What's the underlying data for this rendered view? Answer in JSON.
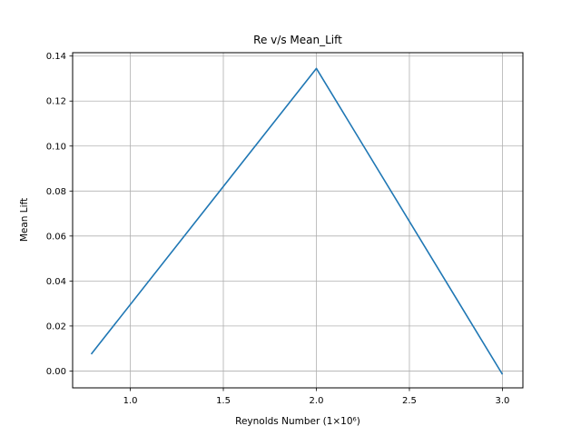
{
  "chart_data": {
    "type": "line",
    "title": "Re v/s Mean_Lift",
    "xlabel": "Reynolds Number (1×10⁶)",
    "ylabel": "Mean Lift",
    "xlim": [
      0.69,
      3.11
    ],
    "ylim": [
      -0.0075,
      0.1415
    ],
    "xticks": [
      1.0,
      1.5,
      2.0,
      2.5,
      3.0
    ],
    "xtick_labels": [
      "1.0",
      "1.5",
      "2.0",
      "2.5",
      "3.0"
    ],
    "yticks": [
      0.0,
      0.02,
      0.04,
      0.06,
      0.08,
      0.1,
      0.12,
      0.14
    ],
    "ytick_labels": [
      "0.00",
      "0.02",
      "0.04",
      "0.06",
      "0.08",
      "0.10",
      "0.12",
      "0.14"
    ],
    "grid": true,
    "series": [
      {
        "color": "#1f77b4",
        "x": [
          0.79,
          2.0,
          3.0
        ],
        "y": [
          0.0075,
          0.1345,
          -0.0015
        ]
      }
    ]
  }
}
